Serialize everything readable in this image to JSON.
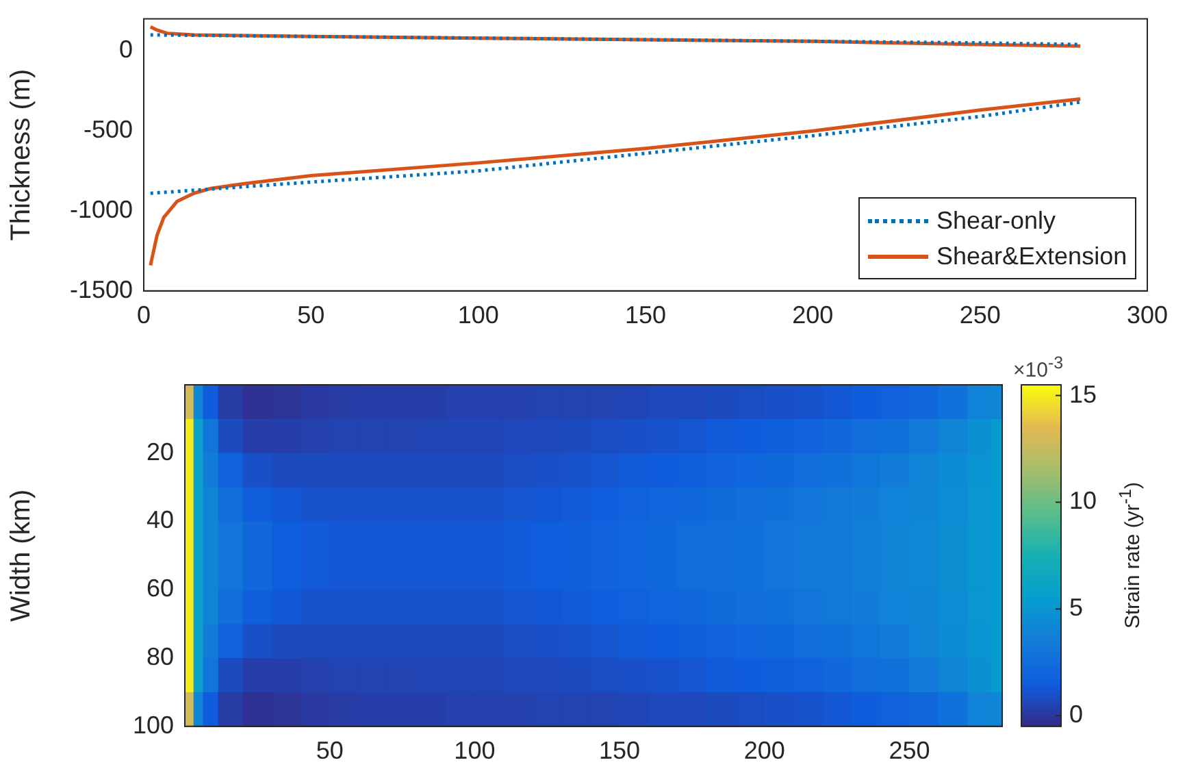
{
  "chart_data": [
    {
      "type": "line",
      "ylabel": "Thickness (m)",
      "xlim": [
        0,
        300
      ],
      "xticks": [
        0,
        50,
        100,
        150,
        200,
        250,
        300
      ],
      "ylim": [
        -1500,
        200
      ],
      "yticks": [
        -1500,
        -1000,
        -500,
        0
      ],
      "grid": false,
      "legend": "bottom right",
      "marker": "none",
      "series": [
        {
          "name": "Shear-only",
          "color": "#0072bd",
          "line_style": "dotted",
          "x": [
            2,
            50,
            100,
            150,
            200,
            250,
            280
          ],
          "values": [
            -890,
            -820,
            -750,
            -640,
            -530,
            -410,
            -320
          ]
        },
        {
          "name": "Shear&Extension",
          "color": "#d95319",
          "line_style": "solid",
          "x": [
            2,
            4,
            6,
            10,
            15,
            20,
            30,
            50,
            100,
            150,
            200,
            250,
            280
          ],
          "values": [
            -1340,
            -1150,
            -1040,
            -940,
            -890,
            -860,
            -830,
            -780,
            -700,
            -610,
            -500,
            -370,
            -300
          ]
        },
        {
          "color": "#0072bd",
          "line_style": "dotted",
          "x": [
            2,
            50,
            100,
            150,
            200,
            250,
            280
          ],
          "values": [
            100,
            90,
            80,
            70,
            60,
            50,
            40
          ]
        },
        {
          "color": "#d95319",
          "line_style": "solid",
          "x": [
            2,
            4,
            7,
            15,
            50,
            100,
            150,
            200,
            250,
            280
          ],
          "values": [
            150,
            130,
            110,
            100,
            90,
            80,
            70,
            60,
            40,
            30
          ]
        }
      ]
    },
    {
      "type": "heatmap",
      "ylabel": "Width (km)",
      "clabel": "Strain rate (yr$^{-1}$)",
      "annotations": [
        "×10$^{-3}$"
      ],
      "xlim": [
        0,
        282
      ],
      "xticks": [
        50,
        100,
        150,
        200,
        250
      ],
      "ylim": [
        100,
        0
      ],
      "yticks": [
        20,
        40,
        60,
        80,
        100
      ],
      "clim": [
        -0.5,
        15.5
      ],
      "cticks": [
        0,
        5,
        10,
        15
      ],
      "x": [
        1.5,
        4.5,
        8,
        15,
        25,
        35,
        45,
        55,
        65,
        75,
        85,
        95,
        105,
        115,
        125,
        135,
        145,
        155,
        165,
        175,
        185,
        195,
        205,
        215,
        225,
        235,
        245,
        255,
        265,
        275,
        281
      ],
      "cells": [
        [
          13,
          4,
          1.5,
          0.2,
          -0.2,
          -0.1,
          0.1,
          0.2,
          0.3,
          0.3,
          0.3,
          0.4,
          0.4,
          0.4,
          0.5,
          0.5,
          0.5,
          0.6,
          0.7,
          0.7,
          0.8,
          0.9,
          1.0,
          1.1,
          1.3,
          1.5,
          1.8,
          2.2,
          2.8,
          3.8,
          4
        ],
        [
          15,
          6,
          3,
          0.8,
          0.3,
          0.3,
          0.4,
          0.5,
          0.5,
          0.5,
          0.6,
          0.6,
          0.6,
          0.7,
          0.7,
          0.8,
          0.9,
          1.0,
          1.1,
          1.2,
          1.4,
          1.5,
          1.7,
          1.9,
          2.2,
          2.5,
          2.8,
          3.3,
          3.9,
          4.7,
          5.5
        ],
        [
          15,
          6,
          3.5,
          1.8,
          1.0,
          0.8,
          0.8,
          0.8,
          0.8,
          0.8,
          0.8,
          0.8,
          0.8,
          0.9,
          1.0,
          1.1,
          1.2,
          1.4,
          1.5,
          1.7,
          1.9,
          2.1,
          2.3,
          2.5,
          2.8,
          3.1,
          3.5,
          3.9,
          4.4,
          5.0,
          5.5
        ],
        [
          15,
          6,
          4,
          2.6,
          1.7,
          1.3,
          1.1,
          1.1,
          1.1,
          1.1,
          1.1,
          1.1,
          1.1,
          1.2,
          1.3,
          1.4,
          1.6,
          1.8,
          2.0,
          2.2,
          2.4,
          2.6,
          2.8,
          3.0,
          3.2,
          3.5,
          3.8,
          4.1,
          4.5,
          5.1,
          5.5
        ],
        [
          15,
          6,
          4,
          3,
          2.2,
          1.6,
          1.4,
          1.3,
          1.3,
          1.3,
          1.3,
          1.3,
          1.3,
          1.4,
          1.6,
          1.7,
          1.9,
          2.1,
          2.3,
          2.5,
          2.6,
          2.8,
          3.0,
          3.2,
          3.4,
          3.6,
          3.9,
          4.2,
          4.6,
          5.2,
          5.5
        ],
        [
          15,
          6,
          4,
          3,
          2.2,
          1.6,
          1.4,
          1.3,
          1.3,
          1.3,
          1.3,
          1.3,
          1.3,
          1.4,
          1.6,
          1.7,
          1.9,
          2.1,
          2.3,
          2.5,
          2.6,
          2.8,
          3.0,
          3.2,
          3.4,
          3.6,
          3.9,
          4.2,
          4.6,
          5.2,
          5.5
        ],
        [
          15,
          6,
          4,
          2.6,
          1.7,
          1.3,
          1.1,
          1.1,
          1.1,
          1.1,
          1.1,
          1.1,
          1.1,
          1.2,
          1.3,
          1.4,
          1.6,
          1.8,
          2.0,
          2.2,
          2.4,
          2.6,
          2.8,
          3.0,
          3.2,
          3.5,
          3.8,
          4.1,
          4.5,
          5.1,
          5.5
        ],
        [
          15,
          6,
          3.5,
          1.8,
          1.0,
          0.8,
          0.8,
          0.8,
          0.8,
          0.8,
          0.8,
          0.8,
          0.8,
          0.9,
          1.0,
          1.1,
          1.2,
          1.4,
          1.5,
          1.7,
          1.9,
          2.1,
          2.3,
          2.5,
          2.8,
          3.1,
          3.5,
          3.9,
          4.4,
          5.0,
          5.5
        ],
        [
          15,
          6,
          3,
          0.8,
          0.3,
          0.3,
          0.4,
          0.5,
          0.5,
          0.5,
          0.6,
          0.6,
          0.6,
          0.7,
          0.7,
          0.8,
          0.9,
          1.0,
          1.1,
          1.2,
          1.4,
          1.5,
          1.7,
          1.9,
          2.2,
          2.5,
          2.8,
          3.3,
          3.9,
          4.7,
          5.5
        ],
        [
          13,
          4,
          1.5,
          0.2,
          -0.2,
          -0.1,
          0.1,
          0.2,
          0.3,
          0.3,
          0.3,
          0.4,
          0.4,
          0.4,
          0.5,
          0.5,
          0.5,
          0.6,
          0.7,
          0.7,
          0.8,
          0.9,
          1.0,
          1.1,
          1.3,
          1.5,
          1.8,
          2.2,
          2.8,
          3.8,
          4
        ]
      ]
    }
  ]
}
